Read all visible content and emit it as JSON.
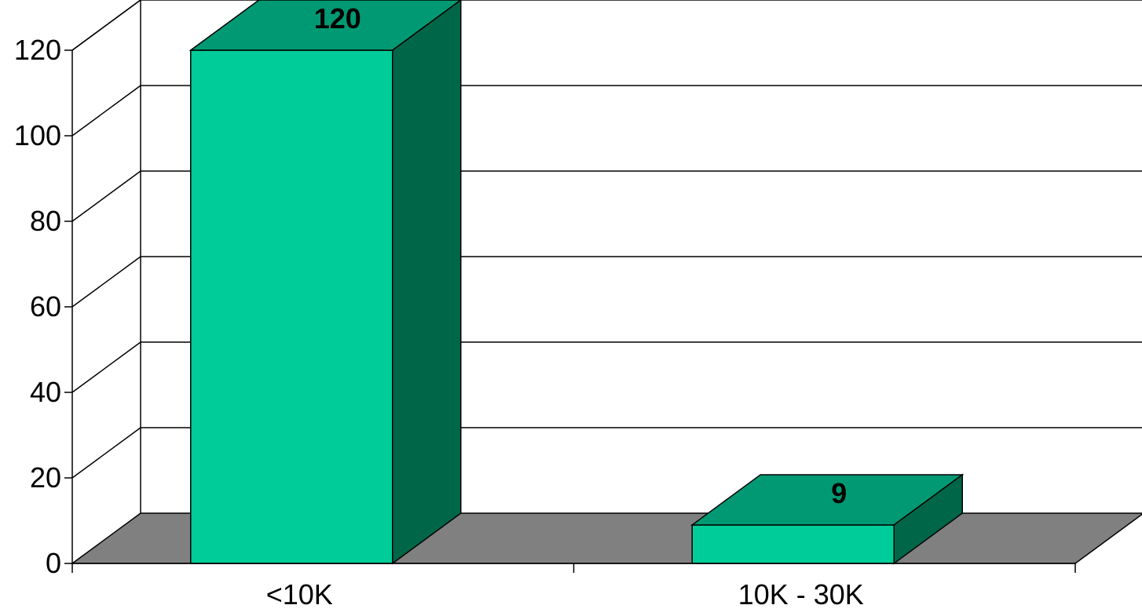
{
  "chart_data": {
    "type": "bar",
    "style": "3d-column",
    "categories": [
      "<10K",
      "10K - 30K"
    ],
    "values": [
      120,
      9
    ],
    "data_labels": [
      "120",
      "9"
    ],
    "title": "",
    "xlabel": "",
    "ylabel": "",
    "ylim": [
      0,
      120
    ],
    "yticks": [
      0,
      20,
      40,
      60,
      80,
      100,
      120
    ],
    "ytick_labels": [
      "0",
      "20",
      "40",
      "60",
      "80",
      "100",
      "120"
    ],
    "grid": true,
    "legend": "none",
    "colors": {
      "bar_front": "#00CC99",
      "bar_top": "#009973",
      "bar_side": "#006648",
      "floor": "#808080",
      "walls": "#ffffff",
      "grid": "#000000"
    }
  }
}
